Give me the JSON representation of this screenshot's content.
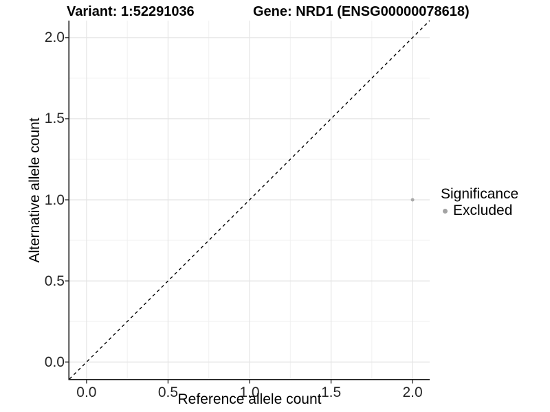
{
  "header": {
    "variant_title": "Variant: 1:52291036",
    "gene_title": "Gene: NRD1 (ENSG00000078618)"
  },
  "axes": {
    "x_label": "Reference allele count",
    "y_label": "Alternative allele count"
  },
  "legend": {
    "title": "Significance",
    "items": [
      {
        "label": "Excluded",
        "color": "#A3A3A3"
      }
    ]
  },
  "chart_data": {
    "type": "scatter",
    "title": "Variant: 1:52291036 / Gene: NRD1 (ENSG00000078618)",
    "xlabel": "Reference allele count",
    "ylabel": "Alternative allele count",
    "xlim": [
      -0.105,
      2.105
    ],
    "ylim": [
      -0.105,
      2.105
    ],
    "x_ticks": [
      0,
      0.5,
      1,
      1.5,
      2
    ],
    "x_tick_labels": [
      "0.0",
      "0.5",
      "1.0",
      "1.5",
      "2.0"
    ],
    "y_ticks": [
      0,
      0.5,
      1,
      1.5,
      2
    ],
    "y_tick_labels": [
      "0.0",
      "0.5",
      "1.0",
      "1.5",
      "2.0"
    ],
    "x_minor_ticks": [
      0.25,
      0.75,
      1.25,
      1.75
    ],
    "y_minor_ticks": [
      0.25,
      0.75,
      1.25,
      1.75
    ],
    "grid": "major and minor, light gray, on white background",
    "legend_position": "right",
    "identity_line": {
      "slope": 1,
      "intercept": 0,
      "style": "dashed",
      "color": "#000000"
    },
    "series": [
      {
        "name": "Excluded",
        "color": "#A9A9A9",
        "marker_radius": 2.5,
        "points": [
          {
            "x": 2,
            "y": 1
          }
        ]
      }
    ]
  },
  "style_colors": {
    "grid_major": "#E4E4E4",
    "grid_minor": "#F0F0F0",
    "axis_line": "#1A1A1A",
    "tick_mark": "#333333"
  }
}
